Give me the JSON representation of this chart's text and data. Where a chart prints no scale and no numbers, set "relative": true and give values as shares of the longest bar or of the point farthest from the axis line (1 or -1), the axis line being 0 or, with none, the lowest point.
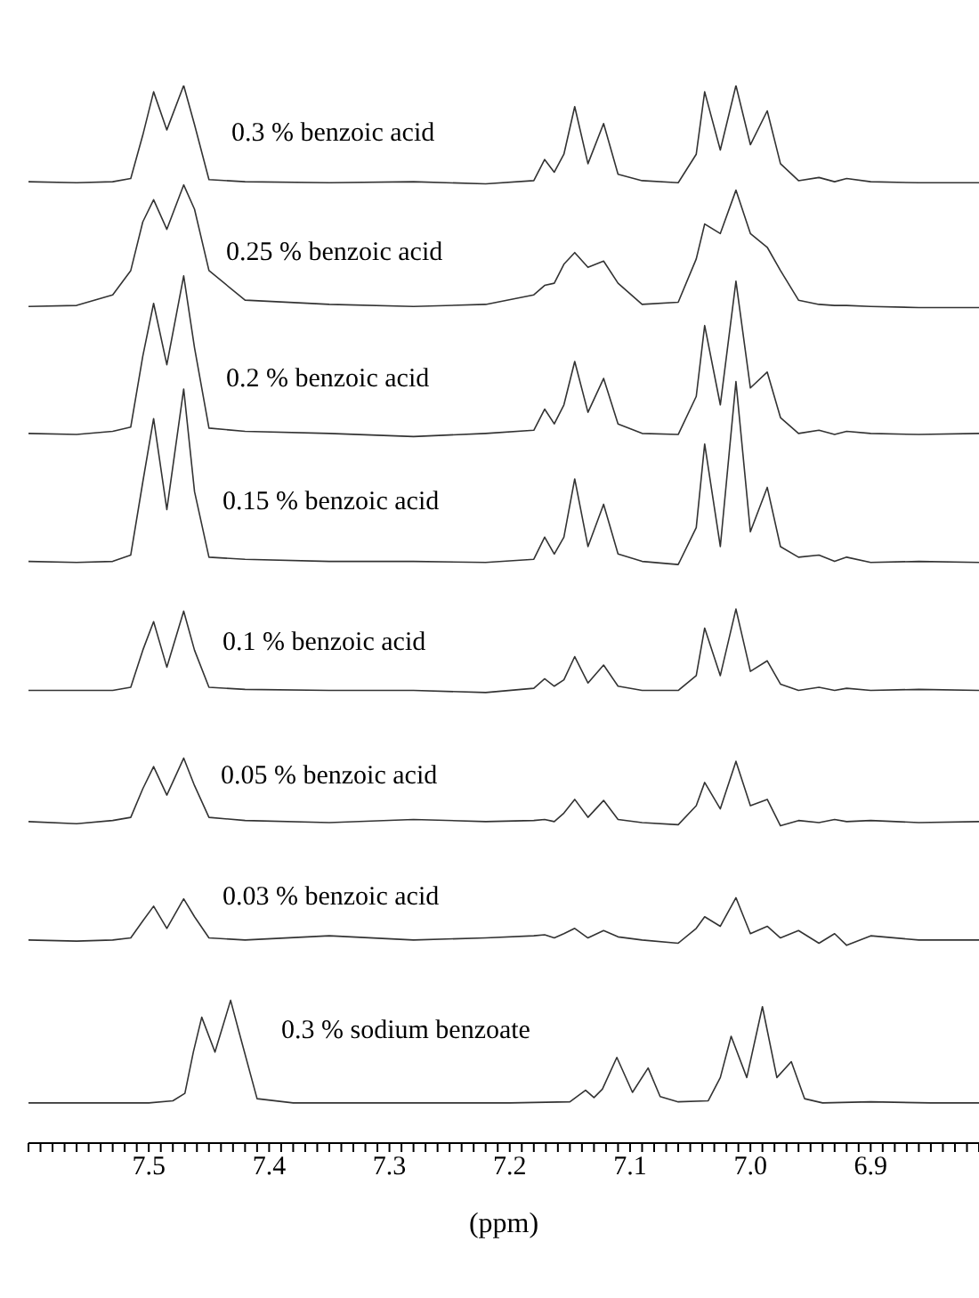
{
  "chart_data": {
    "type": "line",
    "relative": true,
    "xlim": [
      7.6,
      6.81
    ],
    "xlabel": "(ppm)",
    "xticks": [
      {
        "value": 7.6,
        "label": null
      },
      {
        "value": 7.59,
        "label": null
      },
      {
        "value": 7.58,
        "label": null
      },
      {
        "value": 7.57,
        "label": null
      },
      {
        "value": 7.56,
        "label": null
      },
      {
        "value": 7.55,
        "label": null
      },
      {
        "value": 7.54,
        "label": null
      },
      {
        "value": 7.53,
        "label": null
      },
      {
        "value": 7.52,
        "label": null
      },
      {
        "value": 7.51,
        "label": null
      },
      7.5,
      {
        "value": 7.49,
        "label": null
      },
      {
        "value": 7.48,
        "label": null
      },
      {
        "value": 7.47,
        "label": null
      },
      {
        "value": 7.46,
        "label": null
      },
      {
        "value": 7.45,
        "label": null
      },
      {
        "value": 7.44,
        "label": null
      },
      {
        "value": 7.43,
        "label": null
      },
      {
        "value": 7.42,
        "label": null
      },
      {
        "value": 7.41,
        "label": null
      },
      7.4,
      {
        "value": 7.39,
        "label": null
      },
      {
        "value": 7.38,
        "label": null
      },
      {
        "value": 7.37,
        "label": null
      },
      {
        "value": 7.36,
        "label": null
      },
      {
        "value": 7.35,
        "label": null
      },
      {
        "value": 7.34,
        "label": null
      },
      {
        "value": 7.33,
        "label": null
      },
      {
        "value": 7.32,
        "label": null
      },
      {
        "value": 7.31,
        "label": null
      },
      7.3,
      {
        "value": 7.29,
        "label": null
      },
      {
        "value": 7.28,
        "label": null
      },
      {
        "value": 7.27,
        "label": null
      },
      {
        "value": 7.26,
        "label": null
      },
      {
        "value": 7.25,
        "label": null
      },
      {
        "value": 7.24,
        "label": null
      },
      {
        "value": 7.23,
        "label": null
      },
      {
        "value": 7.22,
        "label": null
      },
      {
        "value": 7.21,
        "label": null
      },
      7.2,
      {
        "value": 7.19,
        "label": null
      },
      {
        "value": 7.18,
        "label": null
      },
      {
        "value": 7.17,
        "label": null
      },
      {
        "value": 7.16,
        "label": null
      },
      {
        "value": 7.15,
        "label": null
      },
      {
        "value": 7.14,
        "label": null
      },
      {
        "value": 7.13,
        "label": null
      },
      {
        "value": 7.12,
        "label": null
      },
      {
        "value": 7.11,
        "label": null
      },
      7.1,
      {
        "value": 7.09,
        "label": null
      },
      {
        "value": 7.08,
        "label": null
      },
      {
        "value": 7.07,
        "label": null
      },
      {
        "value": 7.06,
        "label": null
      },
      {
        "value": 7.05,
        "label": null
      },
      {
        "value": 7.04,
        "label": null
      },
      {
        "value": 7.03,
        "label": null
      },
      {
        "value": 7.02,
        "label": null
      },
      {
        "value": 7.01,
        "label": null
      },
      {
        "value": 7.0,
        "label": "7.0"
      },
      {
        "value": 6.99,
        "label": null
      },
      {
        "value": 6.98,
        "label": null
      },
      {
        "value": 6.97,
        "label": null
      },
      {
        "value": 6.96,
        "label": null
      },
      {
        "value": 6.95,
        "label": null
      },
      {
        "value": 6.94,
        "label": null
      },
      {
        "value": 6.93,
        "label": null
      },
      {
        "value": 6.92,
        "label": null
      },
      {
        "value": 6.91,
        "label": null
      },
      6.9,
      {
        "value": 6.89,
        "label": null
      },
      {
        "value": 6.88,
        "label": null
      },
      {
        "value": 6.87,
        "label": null
      },
      {
        "value": 6.86,
        "label": null
      },
      {
        "value": 6.85,
        "label": null
      },
      {
        "value": 6.84,
        "label": null
      },
      {
        "value": 6.83,
        "label": null
      },
      {
        "value": 6.82,
        "label": null
      },
      {
        "value": 6.81,
        "label": null
      }
    ],
    "series": [
      {
        "name": "0.3 % benzoic acid",
        "color": "#333333",
        "x": [
          7.6,
          7.56,
          7.53,
          7.515,
          7.505,
          7.496,
          7.485,
          7.471,
          7.462,
          7.45,
          7.42,
          7.35,
          7.28,
          7.22,
          7.18,
          7.171,
          7.163,
          7.155,
          7.146,
          7.135,
          7.122,
          7.11,
          7.09,
          7.06,
          7.045,
          7.038,
          7.025,
          7.012,
          7.0,
          6.986,
          6.975,
          6.96,
          6.943,
          6.93,
          6.92,
          6.9,
          6.86,
          6.81
        ],
        "values": [
          0.909,
          0.908,
          0.909,
          0.912,
          0.953,
          0.994,
          0.958,
          1.0,
          0.963,
          0.911,
          0.909,
          0.908,
          0.909,
          0.907,
          0.91,
          0.93,
          0.918,
          0.935,
          0.98,
          0.926,
          0.964,
          0.916,
          0.91,
          0.908,
          0.935,
          0.994,
          0.939,
          1.0,
          0.944,
          0.976,
          0.926,
          0.91,
          0.913,
          0.909,
          0.912,
          0.909,
          0.908,
          0.908
        ]
      },
      {
        "name": "0.25 % benzoic acid",
        "color": "#333333",
        "x": [
          7.6,
          7.56,
          7.53,
          7.515,
          7.505,
          7.496,
          7.485,
          7.471,
          7.462,
          7.45,
          7.42,
          7.35,
          7.28,
          7.22,
          7.18,
          7.171,
          7.163,
          7.155,
          7.146,
          7.135,
          7.122,
          7.11,
          7.09,
          7.06,
          7.045,
          7.038,
          7.025,
          7.012,
          7.0,
          6.986,
          6.975,
          6.96,
          6.943,
          6.93,
          6.92,
          6.9,
          6.86,
          6.81
        ],
        "values": [
          0.791,
          0.792,
          0.802,
          0.825,
          0.871,
          0.892,
          0.864,
          0.906,
          0.883,
          0.825,
          0.797,
          0.793,
          0.791,
          0.793,
          0.802,
          0.811,
          0.813,
          0.831,
          0.842,
          0.828,
          0.834,
          0.813,
          0.793,
          0.795,
          0.836,
          0.869,
          0.86,
          0.901,
          0.86,
          0.847,
          0.825,
          0.797,
          0.793,
          0.792,
          0.792,
          0.791,
          0.79,
          0.79
        ]
      },
      {
        "name": "0.2 % benzoic acid",
        "color": "#333333",
        "x": [
          7.6,
          7.56,
          7.53,
          7.515,
          7.505,
          7.496,
          7.485,
          7.471,
          7.462,
          7.45,
          7.42,
          7.35,
          7.28,
          7.22,
          7.18,
          7.171,
          7.163,
          7.155,
          7.146,
          7.135,
          7.122,
          7.11,
          7.09,
          7.06,
          7.045,
          7.038,
          7.025,
          7.012,
          7.0,
          6.986,
          6.975,
          6.96,
          6.943,
          6.93,
          6.92,
          6.9,
          6.86,
          6.81
        ],
        "values": [
          0.671,
          0.67,
          0.673,
          0.677,
          0.744,
          0.794,
          0.736,
          0.82,
          0.752,
          0.676,
          0.673,
          0.671,
          0.668,
          0.671,
          0.674,
          0.694,
          0.68,
          0.698,
          0.739,
          0.691,
          0.723,
          0.68,
          0.671,
          0.67,
          0.706,
          0.773,
          0.698,
          0.815,
          0.714,
          0.729,
          0.686,
          0.671,
          0.674,
          0.67,
          0.673,
          0.671,
          0.67,
          0.671
        ]
      },
      {
        "name": "0.15 % benzoic acid",
        "color": "#333333",
        "x": [
          7.6,
          7.56,
          7.53,
          7.515,
          7.505,
          7.496,
          7.485,
          7.471,
          7.462,
          7.45,
          7.42,
          7.35,
          7.28,
          7.22,
          7.18,
          7.171,
          7.163,
          7.155,
          7.146,
          7.135,
          7.122,
          7.11,
          7.09,
          7.06,
          7.045,
          7.038,
          7.025,
          7.012,
          7.0,
          6.986,
          6.975,
          6.96,
          6.943,
          6.93,
          6.92,
          6.9,
          6.86,
          6.81
        ],
        "values": [
          0.55,
          0.549,
          0.55,
          0.556,
          0.625,
          0.685,
          0.599,
          0.713,
          0.616,
          0.554,
          0.552,
          0.55,
          0.55,
          0.549,
          0.552,
          0.573,
          0.557,
          0.573,
          0.628,
          0.564,
          0.604,
          0.557,
          0.55,
          0.547,
          0.582,
          0.661,
          0.564,
          0.72,
          0.578,
          0.62,
          0.564,
          0.554,
          0.556,
          0.55,
          0.554,
          0.549,
          0.55,
          0.549
        ]
      },
      {
        "name": "0.1 % benzoic acid",
        "color": "#333333",
        "x": [
          7.6,
          7.56,
          7.53,
          7.515,
          7.505,
          7.496,
          7.485,
          7.471,
          7.462,
          7.45,
          7.42,
          7.35,
          7.28,
          7.22,
          7.18,
          7.171,
          7.163,
          7.155,
          7.146,
          7.135,
          7.122,
          7.11,
          7.09,
          7.06,
          7.045,
          7.038,
          7.025,
          7.012,
          7.0,
          6.986,
          6.975,
          6.96,
          6.943,
          6.93,
          6.92,
          6.9,
          6.86,
          6.81
        ],
        "values": [
          0.428,
          0.428,
          0.428,
          0.431,
          0.466,
          0.493,
          0.45,
          0.503,
          0.466,
          0.431,
          0.429,
          0.428,
          0.428,
          0.426,
          0.43,
          0.439,
          0.432,
          0.438,
          0.46,
          0.435,
          0.452,
          0.432,
          0.428,
          0.428,
          0.442,
          0.487,
          0.442,
          0.505,
          0.446,
          0.456,
          0.434,
          0.428,
          0.431,
          0.428,
          0.43,
          0.428,
          0.429,
          0.428
        ]
      },
      {
        "name": "0.05 % benzoic acid",
        "color": "#333333",
        "x": [
          7.6,
          7.56,
          7.53,
          7.515,
          7.505,
          7.496,
          7.485,
          7.471,
          7.462,
          7.45,
          7.42,
          7.35,
          7.28,
          7.22,
          7.18,
          7.171,
          7.163,
          7.155,
          7.146,
          7.135,
          7.122,
          7.11,
          7.09,
          7.06,
          7.045,
          7.038,
          7.025,
          7.012,
          7.0,
          6.986,
          6.975,
          6.96,
          6.943,
          6.93,
          6.92,
          6.9,
          6.86,
          6.81
        ],
        "values": [
          0.304,
          0.302,
          0.305,
          0.308,
          0.335,
          0.356,
          0.329,
          0.364,
          0.338,
          0.308,
          0.305,
          0.303,
          0.306,
          0.304,
          0.305,
          0.306,
          0.304,
          0.312,
          0.325,
          0.308,
          0.324,
          0.306,
          0.303,
          0.301,
          0.319,
          0.341,
          0.316,
          0.361,
          0.319,
          0.325,
          0.3,
          0.305,
          0.303,
          0.306,
          0.304,
          0.305,
          0.303,
          0.304
        ]
      },
      {
        "name": "0.03 % benzoic acid",
        "color": "#333333",
        "x": [
          7.6,
          7.56,
          7.53,
          7.515,
          7.505,
          7.496,
          7.485,
          7.471,
          7.462,
          7.45,
          7.42,
          7.35,
          7.28,
          7.22,
          7.18,
          7.171,
          7.163,
          7.155,
          7.146,
          7.135,
          7.122,
          7.11,
          7.09,
          7.06,
          7.045,
          7.038,
          7.025,
          7.012,
          7.0,
          6.986,
          6.975,
          6.96,
          6.943,
          6.93,
          6.92,
          6.9,
          6.86,
          6.81
        ],
        "values": [
          0.192,
          0.191,
          0.192,
          0.194,
          0.21,
          0.224,
          0.203,
          0.231,
          0.214,
          0.194,
          0.192,
          0.196,
          0.192,
          0.194,
          0.196,
          0.197,
          0.194,
          0.198,
          0.203,
          0.194,
          0.201,
          0.195,
          0.192,
          0.189,
          0.203,
          0.214,
          0.205,
          0.232,
          0.198,
          0.205,
          0.194,
          0.201,
          0.189,
          0.198,
          0.187,
          0.196,
          0.192,
          0.192
        ]
      },
      {
        "name": "0.3 % sodium benzoate",
        "color": "#333333",
        "x": [
          7.6,
          7.55,
          7.5,
          7.48,
          7.47,
          7.463,
          7.456,
          7.445,
          7.432,
          7.425,
          7.41,
          7.38,
          7.3,
          7.2,
          7.15,
          7.137,
          7.13,
          7.123,
          7.111,
          7.098,
          7.085,
          7.075,
          7.06,
          7.035,
          7.025,
          7.016,
          7.003,
          6.99,
          6.978,
          6.966,
          6.955,
          6.94,
          6.9,
          6.85,
          6.81
        ],
        "values": [
          0.038,
          0.038,
          0.038,
          0.04,
          0.047,
          0.086,
          0.119,
          0.086,
          0.135,
          0.105,
          0.042,
          0.038,
          0.038,
          0.038,
          0.039,
          0.05,
          0.043,
          0.051,
          0.081,
          0.048,
          0.071,
          0.044,
          0.039,
          0.04,
          0.062,
          0.101,
          0.062,
          0.129,
          0.062,
          0.077,
          0.042,
          0.038,
          0.039,
          0.038,
          0.038
        ]
      }
    ]
  }
}
